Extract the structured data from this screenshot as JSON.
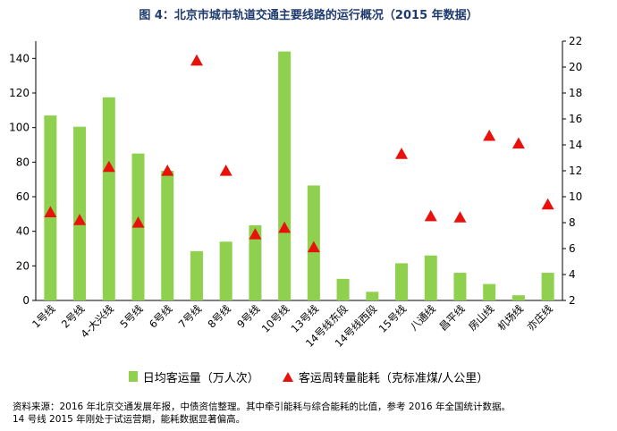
{
  "chart_data": {
    "type": "bar",
    "title": "图 4：北京市城市轨道交通主要线路的运行概况（2015 年数据）",
    "categories": [
      "1号线",
      "2号线",
      "4-大兴线",
      "5号线",
      "6号线",
      "7号线",
      "8号线",
      "9号线",
      "10号线",
      "13号线",
      "14号线东段",
      "14号线西段",
      "15号线",
      "八通线",
      "昌平线",
      "房山线",
      "机场线",
      "亦庄线"
    ],
    "series": [
      {
        "name": "日均客运量（万人次）",
        "axis": "left",
        "type": "bar",
        "color": "#8fd14f",
        "values": [
          107,
          100.5,
          117.5,
          85,
          75,
          28.5,
          34,
          43.5,
          144,
          66.5,
          12.5,
          5,
          21.5,
          26,
          16,
          9.5,
          3,
          16
        ]
      },
      {
        "name": "客运周转量能耗（克标准煤/人公里）",
        "axis": "right",
        "type": "scatter",
        "marker": "triangle",
        "color": "#e8120c",
        "values": [
          8.8,
          8.2,
          12.3,
          8.0,
          12.0,
          20.5,
          12.0,
          7.1,
          7.6,
          6.1,
          null,
          null,
          13.3,
          8.5,
          8.4,
          14.7,
          14.1,
          9.4
        ]
      }
    ],
    "yleft": {
      "ylim": [
        0,
        150
      ],
      "ticks": [
        0,
        20,
        40,
        60,
        80,
        100,
        120,
        140
      ]
    },
    "yright": {
      "ylim": [
        2,
        22
      ],
      "ticks": [
        2,
        4,
        6,
        8,
        10,
        12,
        14,
        16,
        18,
        20,
        22
      ]
    },
    "grid": false,
    "legend": "bottom"
  },
  "notes": [
    "资料来源：2016 年北京交通发展年报，中债资信整理。其中牵引能耗与综合能耗的比值，参考 2016 年全国统计数据。",
    "14 号线 2015 年刚处于试运营期，能耗数据显著偏高。"
  ]
}
